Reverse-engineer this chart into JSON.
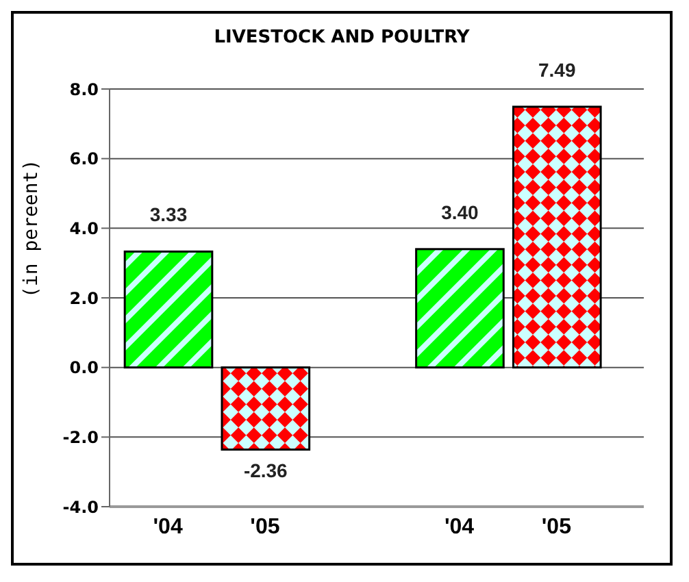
{
  "chart_data": {
    "type": "bar",
    "title": "LIVESTOCK AND POULTRY",
    "ylabel": "(in pereent)",
    "categories": [
      "'04",
      "'05",
      "'04",
      "'05"
    ],
    "values": [
      3.33,
      -2.36,
      3.4,
      7.49
    ],
    "colors": [
      "#00ff00",
      "#ff0000",
      "#00ff00",
      "#ff0000"
    ],
    "value_labels": [
      "3.33",
      "-2.36",
      "3.40",
      "7.49"
    ],
    "ylim": [
      -4,
      8
    ],
    "yticks": [
      {
        "value": -4,
        "label": "-4.0"
      },
      {
        "value": -2,
        "label": "-2.0"
      },
      {
        "value": 0,
        "label": "0.0"
      },
      {
        "value": 2,
        "label": "2.0"
      },
      {
        "value": 4,
        "label": "4.0"
      },
      {
        "value": 6,
        "label": "6.0"
      },
      {
        "value": 8,
        "label": "8.0"
      }
    ],
    "grid": "y",
    "legend": false
  }
}
